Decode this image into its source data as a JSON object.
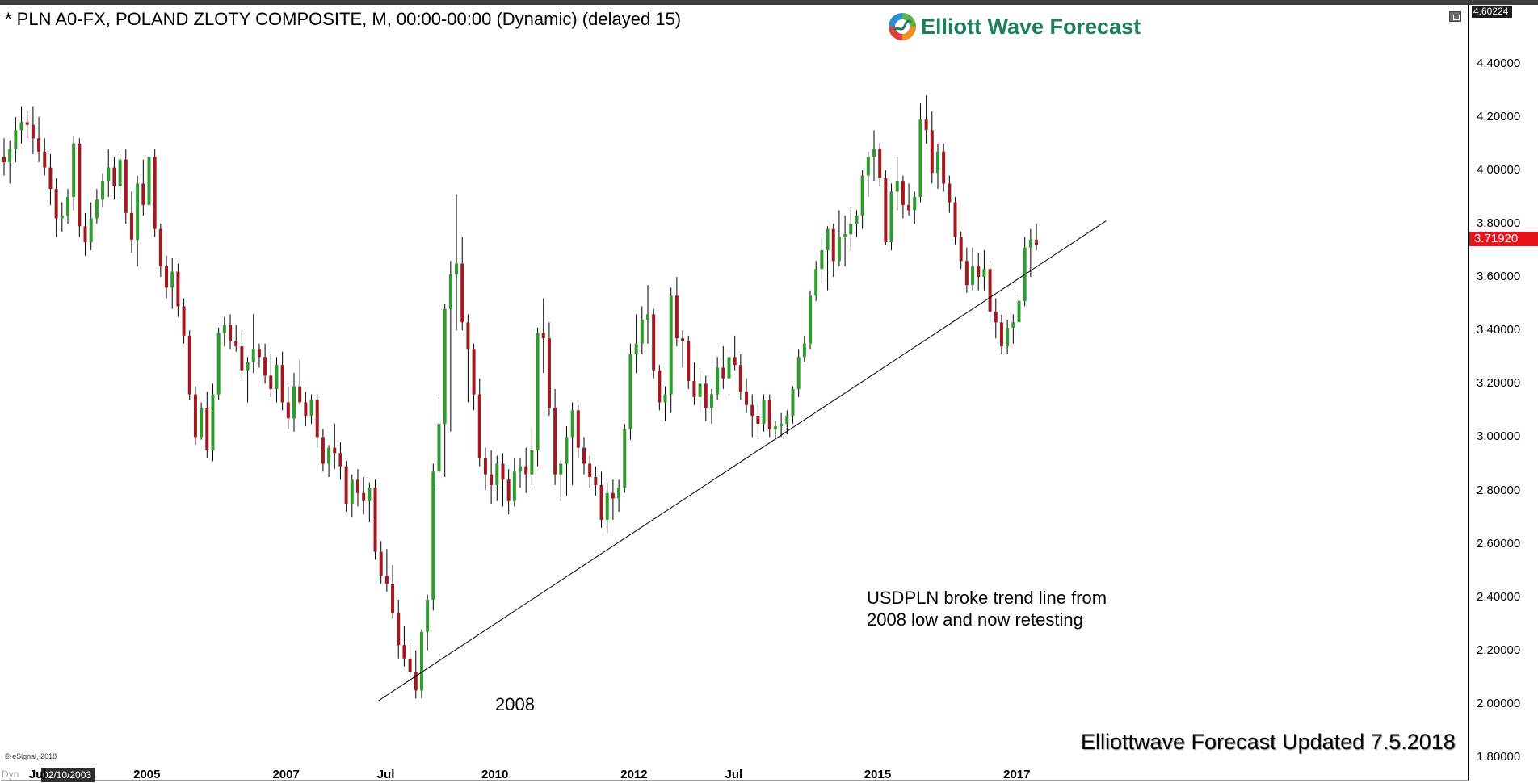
{
  "header": {
    "title": "* PLN A0-FX, POLAND ZLOTY COMPOSITE, M, 00:00-00:00 (Dynamic) (delayed 15)",
    "logo_text": "Elliott Wave Forecast"
  },
  "price_panel": {
    "current_price": "3.71920",
    "top_price": "4.60224"
  },
  "x_axis": {
    "date_box": "02/10/2003",
    "dyn_label": "Dyn",
    "credit": "© eSignal, 2018"
  },
  "annotations": {
    "low_label": "2008",
    "note_line1": "USDPLN broke trend line from",
    "note_line2": "2008 low and now retesting",
    "updated": "Elliottwave Forecast Updated 7.5.2018"
  },
  "colors": {
    "up": "#2e9b2e",
    "down": "#a1191f",
    "current_price_bg": "#e8141c",
    "logo_text": "#1d7f5d"
  },
  "chart_data": {
    "type": "candlestick",
    "title": "* PLN A0-FX, POLAND ZLOTY COMPOSITE, M, 00:00-00:00 (Dynamic) (delayed 15)",
    "interval": "monthly",
    "start": "2003-02",
    "ylim": [
      1.76,
      4.62
    ],
    "y_ticks": [
      "4.40000",
      "4.20000",
      "4.00000",
      "3.80000",
      "3.60000",
      "3.40000",
      "3.20000",
      "3.00000",
      "2.80000",
      "2.60000",
      "2.40000",
      "2.20000",
      "2.00000",
      "1.80000"
    ],
    "x_ticks": [
      "Jul",
      "2005",
      "2007",
      "Jul",
      "2010",
      "2012",
      "Jul",
      "2015",
      "2017"
    ],
    "x_tick_month_index": [
      5,
      23,
      47,
      65,
      83,
      107,
      125,
      149,
      173
    ],
    "candle_fields": [
      "open",
      "high",
      "low",
      "close"
    ],
    "candles": [
      [
        4.05,
        4.12,
        3.98,
        4.03
      ],
      [
        4.03,
        4.11,
        3.95,
        4.08
      ],
      [
        4.08,
        4.2,
        4.03,
        4.15
      ],
      [
        4.15,
        4.24,
        4.1,
        4.18
      ],
      [
        4.18,
        4.22,
        4.12,
        4.17
      ],
      [
        4.17,
        4.24,
        4.06,
        4.12
      ],
      [
        4.12,
        4.2,
        4.03,
        4.07
      ],
      [
        4.07,
        4.12,
        3.98,
        4.01
      ],
      [
        4.01,
        4.06,
        3.87,
        3.93
      ],
      [
        3.93,
        3.97,
        3.75,
        3.82
      ],
      [
        3.82,
        3.88,
        3.77,
        3.83
      ],
      [
        3.83,
        3.93,
        3.8,
        3.9
      ],
      [
        3.9,
        4.13,
        3.85,
        4.1
      ],
      [
        4.1,
        4.12,
        3.75,
        3.79
      ],
      [
        3.79,
        3.84,
        3.68,
        3.73
      ],
      [
        3.73,
        3.88,
        3.7,
        3.82
      ],
      [
        3.82,
        3.93,
        3.8,
        3.89
      ],
      [
        3.89,
        3.99,
        3.86,
        3.96
      ],
      [
        3.96,
        4.08,
        3.9,
        4.01
      ],
      [
        4.01,
        4.05,
        3.89,
        3.94
      ],
      [
        3.94,
        4.06,
        3.91,
        4.04
      ],
      [
        4.04,
        4.08,
        3.8,
        3.84
      ],
      [
        3.84,
        3.92,
        3.69,
        3.74
      ],
      [
        3.74,
        3.98,
        3.64,
        3.95
      ],
      [
        3.95,
        4.04,
        3.83,
        3.87
      ],
      [
        3.87,
        4.08,
        3.84,
        4.05
      ],
      [
        4.05,
        4.08,
        3.75,
        3.78
      ],
      [
        3.78,
        3.8,
        3.6,
        3.64
      ],
      [
        3.64,
        3.68,
        3.52,
        3.56
      ],
      [
        3.56,
        3.67,
        3.48,
        3.62
      ],
      [
        3.62,
        3.65,
        3.45,
        3.49
      ],
      [
        3.49,
        3.52,
        3.35,
        3.38
      ],
      [
        3.38,
        3.4,
        3.14,
        3.16
      ],
      [
        3.16,
        3.19,
        2.97,
        3.0
      ],
      [
        3.0,
        3.13,
        2.99,
        3.11
      ],
      [
        3.11,
        3.17,
        2.92,
        2.95
      ],
      [
        2.95,
        3.2,
        2.91,
        3.16
      ],
      [
        3.16,
        3.41,
        3.14,
        3.39
      ],
      [
        3.39,
        3.45,
        3.34,
        3.42
      ],
      [
        3.42,
        3.46,
        3.33,
        3.36
      ],
      [
        3.36,
        3.42,
        3.32,
        3.34
      ],
      [
        3.34,
        3.4,
        3.22,
        3.25
      ],
      [
        3.25,
        3.3,
        3.13,
        3.28
      ],
      [
        3.28,
        3.46,
        3.24,
        3.33
      ],
      [
        3.33,
        3.35,
        3.26,
        3.3
      ],
      [
        3.3,
        3.35,
        3.2,
        3.23
      ],
      [
        3.23,
        3.31,
        3.15,
        3.18
      ],
      [
        3.18,
        3.3,
        3.13,
        3.27
      ],
      [
        3.27,
        3.32,
        3.1,
        3.13
      ],
      [
        3.13,
        3.19,
        3.03,
        3.07
      ],
      [
        3.07,
        3.24,
        3.02,
        3.19
      ],
      [
        3.19,
        3.29,
        3.12,
        3.13
      ],
      [
        3.13,
        3.17,
        3.04,
        3.08
      ],
      [
        3.08,
        3.16,
        3.05,
        3.14
      ],
      [
        3.14,
        3.16,
        2.96,
        3.0
      ],
      [
        3.0,
        3.03,
        2.87,
        2.9
      ],
      [
        2.9,
        2.97,
        2.85,
        2.96
      ],
      [
        2.96,
        3.05,
        2.88,
        2.94
      ],
      [
        2.94,
        2.98,
        2.84,
        2.89
      ],
      [
        2.89,
        2.91,
        2.72,
        2.75
      ],
      [
        2.75,
        2.86,
        2.7,
        2.84
      ],
      [
        2.84,
        2.88,
        2.74,
        2.79
      ],
      [
        2.79,
        2.85,
        2.71,
        2.76
      ],
      [
        2.76,
        2.83,
        2.68,
        2.81
      ],
      [
        2.81,
        2.84,
        2.54,
        2.57
      ],
      [
        2.57,
        2.61,
        2.45,
        2.48
      ],
      [
        2.48,
        2.58,
        2.42,
        2.45
      ],
      [
        2.45,
        2.52,
        2.32,
        2.34
      ],
      [
        2.34,
        2.39,
        2.17,
        2.22
      ],
      [
        2.22,
        2.29,
        2.14,
        2.17
      ],
      [
        2.17,
        2.23,
        2.08,
        2.12
      ],
      [
        2.12,
        2.2,
        2.02,
        2.05
      ],
      [
        2.05,
        2.28,
        2.02,
        2.27
      ],
      [
        2.27,
        2.41,
        2.2,
        2.39
      ],
      [
        2.39,
        2.9,
        2.35,
        2.87
      ],
      [
        2.87,
        3.15,
        2.8,
        3.05
      ],
      [
        3.05,
        3.5,
        2.85,
        3.48
      ],
      [
        3.48,
        3.66,
        3.02,
        3.61
      ],
      [
        3.61,
        3.91,
        3.4,
        3.65
      ],
      [
        3.65,
        3.75,
        3.4,
        3.43
      ],
      [
        3.43,
        3.46,
        3.13,
        3.33
      ],
      [
        3.33,
        3.35,
        3.1,
        3.16
      ],
      [
        3.16,
        3.22,
        2.89,
        2.92
      ],
      [
        2.92,
        2.96,
        2.8,
        2.86
      ],
      [
        2.86,
        2.95,
        2.75,
        2.82
      ],
      [
        2.82,
        2.93,
        2.76,
        2.9
      ],
      [
        2.9,
        2.94,
        2.74,
        2.84
      ],
      [
        2.84,
        2.88,
        2.71,
        2.76
      ],
      [
        2.76,
        2.92,
        2.74,
        2.87
      ],
      [
        2.87,
        2.92,
        2.81,
        2.89
      ],
      [
        2.89,
        2.96,
        2.79,
        2.86
      ],
      [
        2.86,
        3.04,
        2.82,
        2.95
      ],
      [
        2.95,
        3.41,
        2.89,
        3.39
      ],
      [
        3.39,
        3.52,
        3.24,
        3.37
      ],
      [
        3.37,
        3.43,
        3.08,
        3.11
      ],
      [
        3.11,
        3.18,
        2.82,
        2.86
      ],
      [
        2.86,
        2.91,
        2.76,
        2.9
      ],
      [
        2.9,
        3.04,
        2.78,
        3.0
      ],
      [
        3.0,
        3.13,
        2.82,
        3.1
      ],
      [
        3.1,
        3.12,
        2.92,
        2.96
      ],
      [
        2.96,
        3.0,
        2.86,
        2.9
      ],
      [
        2.9,
        2.93,
        2.81,
        2.85
      ],
      [
        2.85,
        2.89,
        2.78,
        2.82
      ],
      [
        2.82,
        2.87,
        2.66,
        2.69
      ],
      [
        2.69,
        2.83,
        2.64,
        2.79
      ],
      [
        2.79,
        2.84,
        2.69,
        2.77
      ],
      [
        2.77,
        2.84,
        2.72,
        2.81
      ],
      [
        2.81,
        3.05,
        2.79,
        3.03
      ],
      [
        3.03,
        3.35,
        2.99,
        3.31
      ],
      [
        3.31,
        3.46,
        3.24,
        3.35
      ],
      [
        3.35,
        3.49,
        3.31,
        3.44
      ],
      [
        3.44,
        3.57,
        3.35,
        3.46
      ],
      [
        3.46,
        3.48,
        3.22,
        3.25
      ],
      [
        3.25,
        3.27,
        3.1,
        3.13
      ],
      [
        3.13,
        3.19,
        3.06,
        3.16
      ],
      [
        3.16,
        3.56,
        3.09,
        3.53
      ],
      [
        3.53,
        3.6,
        3.34,
        3.37
      ],
      [
        3.37,
        3.4,
        3.26,
        3.36
      ],
      [
        3.36,
        3.38,
        3.18,
        3.21
      ],
      [
        3.21,
        3.28,
        3.12,
        3.15
      ],
      [
        3.15,
        3.25,
        3.09,
        3.2
      ],
      [
        3.2,
        3.23,
        3.06,
        3.11
      ],
      [
        3.11,
        3.18,
        3.05,
        3.16
      ],
      [
        3.16,
        3.3,
        3.14,
        3.26
      ],
      [
        3.26,
        3.34,
        3.18,
        3.22
      ],
      [
        3.22,
        3.33,
        3.16,
        3.3
      ],
      [
        3.3,
        3.38,
        3.25,
        3.27
      ],
      [
        3.27,
        3.31,
        3.14,
        3.17
      ],
      [
        3.17,
        3.22,
        3.09,
        3.12
      ],
      [
        3.12,
        3.16,
        3.0,
        3.08
      ],
      [
        3.08,
        3.13,
        3.0,
        3.05
      ],
      [
        3.05,
        3.16,
        3.02,
        3.14
      ],
      [
        3.14,
        3.16,
        3.0,
        3.03
      ],
      [
        3.03,
        3.06,
        2.99,
        3.04
      ],
      [
        3.04,
        3.09,
        3.0,
        3.05
      ],
      [
        3.05,
        3.1,
        3.01,
        3.08
      ],
      [
        3.08,
        3.19,
        3.05,
        3.18
      ],
      [
        3.18,
        3.33,
        3.15,
        3.3
      ],
      [
        3.3,
        3.38,
        3.28,
        3.35
      ],
      [
        3.35,
        3.55,
        3.33,
        3.53
      ],
      [
        3.53,
        3.66,
        3.51,
        3.63
      ],
      [
        3.63,
        3.75,
        3.58,
        3.7
      ],
      [
        3.7,
        3.79,
        3.55,
        3.78
      ],
      [
        3.78,
        3.8,
        3.6,
        3.66
      ],
      [
        3.66,
        3.85,
        3.64,
        3.75
      ],
      [
        3.75,
        3.83,
        3.64,
        3.76
      ],
      [
        3.76,
        3.86,
        3.7,
        3.8
      ],
      [
        3.8,
        3.85,
        3.75,
        3.83
      ],
      [
        3.83,
        4.0,
        3.78,
        3.98
      ],
      [
        3.98,
        4.07,
        3.9,
        4.05
      ],
      [
        4.05,
        4.15,
        3.96,
        4.08
      ],
      [
        4.08,
        4.1,
        3.94,
        3.97
      ],
      [
        3.97,
        4.0,
        3.72,
        3.73
      ],
      [
        3.73,
        3.95,
        3.7,
        3.92
      ],
      [
        3.92,
        4.05,
        3.85,
        3.96
      ],
      [
        3.96,
        3.98,
        3.82,
        3.87
      ],
      [
        3.87,
        3.95,
        3.83,
        3.85
      ],
      [
        3.85,
        3.92,
        3.8,
        3.9
      ],
      [
        3.9,
        4.25,
        3.88,
        4.19
      ],
      [
        4.19,
        4.28,
        4.1,
        4.15
      ],
      [
        4.15,
        4.22,
        3.95,
        3.99
      ],
      [
        3.99,
        4.1,
        3.93,
        4.07
      ],
      [
        4.07,
        4.1,
        3.92,
        3.95
      ],
      [
        3.95,
        3.98,
        3.84,
        3.88
      ],
      [
        3.88,
        3.9,
        3.72,
        3.75
      ],
      [
        3.75,
        3.77,
        3.63,
        3.66
      ],
      [
        3.66,
        3.71,
        3.54,
        3.57
      ],
      [
        3.57,
        3.71,
        3.55,
        3.64
      ],
      [
        3.64,
        3.69,
        3.55,
        3.6
      ],
      [
        3.6,
        3.7,
        3.55,
        3.63
      ],
      [
        3.63,
        3.66,
        3.42,
        3.47
      ],
      [
        3.47,
        3.52,
        3.37,
        3.43
      ],
      [
        3.43,
        3.46,
        3.31,
        3.34
      ],
      [
        3.34,
        3.44,
        3.31,
        3.41
      ],
      [
        3.41,
        3.46,
        3.35,
        3.43
      ],
      [
        3.43,
        3.54,
        3.38,
        3.51
      ],
      [
        3.51,
        3.75,
        3.49,
        3.71
      ],
      [
        3.71,
        3.78,
        3.6,
        3.74
      ],
      [
        3.74,
        3.8,
        3.7,
        3.72
      ]
    ],
    "annotations": [
      "2008",
      "USDPLN broke trend line from 2008 low and now retesting"
    ],
    "trendline": {
      "start": [
        "2008-07",
        2.01
      ],
      "end": [
        "2018-12",
        3.81
      ]
    }
  }
}
